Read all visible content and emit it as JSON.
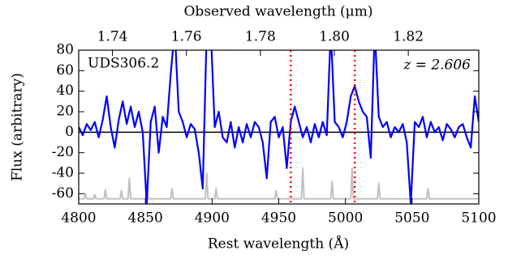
{
  "chart_data": {
    "type": "line",
    "xlabel": "Rest wavelength (Å)",
    "x2label": "Observed wavelength (μm)",
    "ylabel": "Flux (arbitrary)",
    "annotations": [
      "UDS306.2",
      "z = 2.606"
    ],
    "xlim": [
      4800,
      5100
    ],
    "xticks": [
      4800,
      4850,
      4900,
      4950,
      5000,
      5050,
      5100
    ],
    "x2lim": [
      1.73088,
      1.83906
    ],
    "x2ticks": [
      1.74,
      1.76,
      1.78,
      {
        "value": 1.8,
        "label": "1.80"
      },
      1.82
    ],
    "ylim": [
      -70,
      80
    ],
    "yticks": [
      80,
      60,
      40,
      20,
      0,
      -20,
      -40,
      -60
    ],
    "hline": {
      "y": 0,
      "color": "#000000"
    },
    "vlines": [
      {
        "x": 4959,
        "color": "#ff0000"
      },
      {
        "x": 5007,
        "color": "#ff0000"
      }
    ],
    "series": [
      {
        "color": "#c0c0c0",
        "x": [
          4800,
          4804,
          4805,
          4806,
          4811,
          4812,
          4813,
          4819,
          4820,
          4821,
          4831,
          4832,
          4833,
          4837,
          4838,
          4839,
          4850,
          4851,
          4852,
          4869,
          4870,
          4871,
          4895,
          4896,
          4897,
          4902,
          4903,
          4904,
          4947,
          4948,
          4949,
          4967,
          4968,
          4969,
          4989,
          4990,
          4991,
          5004,
          5005,
          5006,
          5024,
          5025,
          5026,
          5061,
          5062,
          5063,
          5100
        ],
        "values": [
          -65,
          -65,
          -60,
          -65,
          -65,
          -61,
          -65,
          -65,
          -56,
          -65,
          -65,
          -57,
          -65,
          -65,
          -45,
          -65,
          -65,
          -50,
          -65,
          -65,
          -55,
          -65,
          -65,
          -40,
          -65,
          -65,
          -55,
          -65,
          -65,
          -57,
          -65,
          -65,
          -35,
          -65,
          -65,
          -48,
          -65,
          -65,
          -35,
          -65,
          -65,
          -50,
          -65,
          -65,
          -55,
          -65,
          -65
        ]
      },
      {
        "color": "#0000ff",
        "x": [
          4800,
          4803,
          4806,
          4809,
          4812,
          4815,
          4818,
          4821,
          4824,
          4827,
          4830,
          4833,
          4836,
          4839,
          4842,
          4845,
          4848,
          4851,
          4854,
          4857,
          4860,
          4863,
          4866,
          4869,
          4872,
          4875,
          4878,
          4881,
          4884,
          4887,
          4890,
          4893,
          4896,
          4899,
          4902,
          4905,
          4908,
          4911,
          4914,
          4917,
          4920,
          4923,
          4926,
          4929,
          4932,
          4935,
          4938,
          4941,
          4944,
          4947,
          4950,
          4953,
          4956,
          4959,
          4962,
          4965,
          4968,
          4971,
          4974,
          4977,
          4980,
          4983,
          4986,
          4989,
          4992,
          4995,
          4998,
          5001,
          5004,
          5007,
          5010,
          5013,
          5016,
          5019,
          5022,
          5025,
          5028,
          5031,
          5034,
          5037,
          5040,
          5043,
          5046,
          5049,
          5052,
          5055,
          5058,
          5061,
          5064,
          5067,
          5070,
          5073,
          5076,
          5079,
          5082,
          5085,
          5088,
          5091,
          5094,
          5097,
          5100
        ],
        "values": [
          5,
          -3,
          8,
          2,
          10,
          -5,
          12,
          35,
          5,
          -15,
          12,
          30,
          8,
          25,
          5,
          20,
          0,
          -70,
          10,
          25,
          -20,
          15,
          5,
          57,
          100,
          20,
          10,
          -5,
          8,
          3,
          -20,
          -55,
          100,
          100,
          5,
          20,
          -5,
          -10,
          10,
          -15,
          5,
          -10,
          8,
          -5,
          10,
          5,
          -10,
          -45,
          10,
          15,
          -5,
          5,
          -35,
          10,
          25,
          10,
          -5,
          5,
          -10,
          8,
          -5,
          10,
          -3,
          100,
          10,
          5,
          -5,
          10,
          35,
          45,
          30,
          20,
          15,
          -25,
          100,
          15,
          5,
          10,
          -5,
          5,
          0,
          8,
          -10,
          -70,
          10,
          5,
          15,
          -5,
          10,
          0,
          5,
          -8,
          8,
          3,
          -5,
          5,
          8,
          -5,
          -15,
          35,
          10
        ]
      }
    ]
  }
}
